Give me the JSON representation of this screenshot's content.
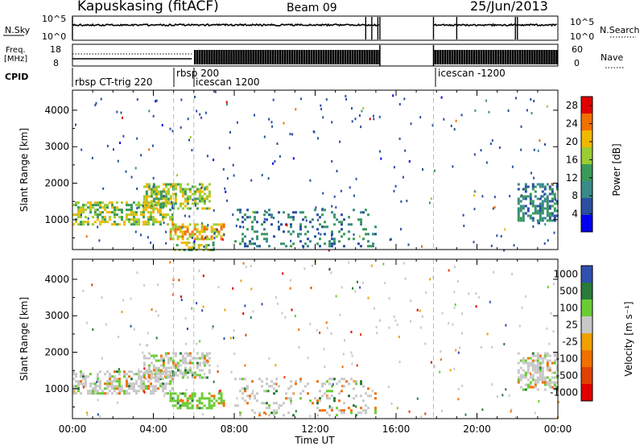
{
  "header": {
    "station": "Kapuskasing (fitACF)",
    "beam": "Beam 09",
    "date": "25/Jun/2013"
  },
  "nsky_panel": {
    "left_label": "N.Sky",
    "left_ticks": [
      "10^5",
      "10^0"
    ],
    "right_ticks": [
      "10^5",
      "10^0"
    ],
    "right_label": "N.Search"
  },
  "freq_panel": {
    "left_label_line1": "Freq.",
    "left_label_line2": "[MHz]",
    "left_ticks": [
      "18",
      "8"
    ],
    "right_ticks": [
      "60",
      "0"
    ],
    "right_label": "Nave"
  },
  "cpid": {
    "label": "CPID",
    "segments": [
      "rbsp CT-trig 220",
      "rbsp 200",
      "icescan 1200",
      "icescan -1200"
    ]
  },
  "chart_data": [
    {
      "type": "heatmap",
      "panel": "power",
      "xlabel": "Time UT",
      "ylabel": "Slant Range [km]",
      "x_ticks": [
        "00:00",
        "04:00",
        "08:00",
        "12:00",
        "16:00",
        "20:00",
        "00:00"
      ],
      "xlim_hours": [
        0,
        24
      ],
      "y_ticks": [
        1000,
        2000,
        3000,
        4000
      ],
      "ylim": [
        180,
        4550
      ],
      "colorbar_label": "Power [dB]",
      "colorbar_ticks": [
        4,
        8,
        12,
        16,
        20,
        24,
        28
      ],
      "colorbar_range": [
        0,
        30
      ],
      "colors": [
        "#0000ee",
        "#2a4fa0",
        "#3a8a8a",
        "#3a9a5a",
        "#9acc33",
        "#f0b800",
        "#f07000",
        "#e00000"
      ],
      "echo_regions": [
        {
          "t0": 0.0,
          "t1": 5.0,
          "r0": 900,
          "r1": 1500,
          "level": 14
        },
        {
          "t0": 3.5,
          "t1": 6.8,
          "r0": 1300,
          "r1": 2000,
          "level": 16
        },
        {
          "t0": 4.8,
          "t1": 7.5,
          "r0": 500,
          "r1": 900,
          "level": 18
        },
        {
          "t0": 5.0,
          "t1": 7.0,
          "r0": 200,
          "r1": 400,
          "level": 14
        },
        {
          "t0": 8.0,
          "t1": 15.0,
          "r0": 300,
          "r1": 1300,
          "level": 6
        },
        {
          "t0": 22.0,
          "t1": 24.0,
          "r0": 1000,
          "r1": 2000,
          "level": 8
        }
      ]
    },
    {
      "type": "heatmap",
      "panel": "velocity",
      "xlabel": "Time UT",
      "ylabel": "Slant Range [km]",
      "x_ticks": [
        "00:00",
        "04:00",
        "08:00",
        "12:00",
        "16:00",
        "20:00",
        "00:00"
      ],
      "xlim_hours": [
        0,
        24
      ],
      "y_ticks": [
        1000,
        2000,
        3000,
        4000
      ],
      "ylim": [
        180,
        4550
      ],
      "colorbar_label": "Velocity [m s⁻¹]",
      "colorbar_ticks": [
        "1000",
        "500",
        "100",
        "25",
        "-25",
        "-100",
        "-500",
        "-1000"
      ],
      "colors": [
        "#3050b0",
        "#2a7a3a",
        "#6acc33",
        "#c8c8c8",
        "#f0a000",
        "#f07000",
        "#e04000",
        "#e00000"
      ],
      "echo_regions": [
        {
          "t0": 0.0,
          "t1": 5.0,
          "r0": 900,
          "r1": 1500,
          "level": 3
        },
        {
          "t0": 3.5,
          "t1": 6.8,
          "r0": 1300,
          "r1": 2000,
          "level": 3
        },
        {
          "t0": 4.8,
          "t1": 7.5,
          "r0": 500,
          "r1": 900,
          "level": 2
        },
        {
          "t0": 8.0,
          "t1": 15.0,
          "r0": 300,
          "r1": 1300,
          "level": 3
        },
        {
          "t0": 22.0,
          "t1": 24.0,
          "r0": 1000,
          "r1": 2000,
          "level": 3
        }
      ]
    }
  ],
  "time_axis_label": "Time UT"
}
